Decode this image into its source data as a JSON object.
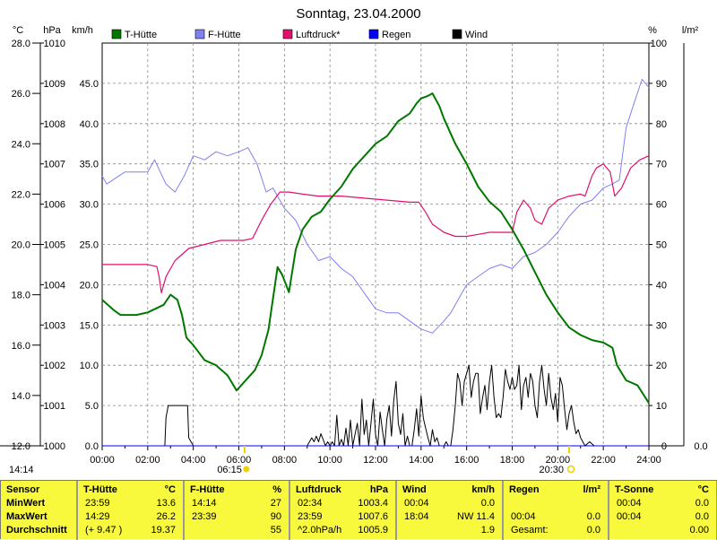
{
  "chart_data": {
    "type": "line",
    "title": "Sonntag, 23.04.2000",
    "x_ticks": [
      "00:00",
      "02:00",
      "04:00",
      "06:00",
      "08:00",
      "10:00",
      "12:00",
      "14:00",
      "16:00",
      "18:00",
      "20:00",
      "22:00",
      "24:00"
    ],
    "xlim": [
      0,
      24
    ],
    "axes": {
      "temp": {
        "unit": "°C",
        "ticks": [
          "12.0",
          "14.0",
          "16.0",
          "18.0",
          "20.0",
          "22.0",
          "24.0",
          "26.0",
          "28.0"
        ],
        "range": [
          12,
          28
        ]
      },
      "pressure": {
        "unit": "hPa",
        "ticks": [
          "1000",
          "1001",
          "1002",
          "1003",
          "1004",
          "1005",
          "1006",
          "1007",
          "1008",
          "1009",
          "1010"
        ],
        "range": [
          1000,
          1010
        ]
      },
      "wind": {
        "unit": "km/h",
        "ticks": [
          "0.0",
          "5.0",
          "10.0",
          "15.0",
          "20.0",
          "25.0",
          "30.0",
          "35.0",
          "40.0",
          "45.0"
        ],
        "range": [
          0,
          50
        ]
      },
      "humidity": {
        "unit": "%",
        "ticks": [
          "0",
          "10",
          "20",
          "30",
          "40",
          "50",
          "60",
          "70",
          "80",
          "90",
          "100"
        ],
        "range": [
          0,
          100
        ]
      },
      "rain": {
        "unit": "l/m²",
        "ticks": [
          "0.0"
        ],
        "range": [
          0,
          1
        ]
      }
    },
    "legend": [
      {
        "name": "T-Hütte",
        "color": "#007800"
      },
      {
        "name": "F-Hütte",
        "color": "#8080f0"
      },
      {
        "name": "Luftdruck*",
        "color": "#e0106e"
      },
      {
        "name": "Regen",
        "color": "#0000ff"
      },
      {
        "name": "Wind",
        "color": "#000000"
      }
    ],
    "series": [
      {
        "name": "T-Hütte",
        "axis": "temp",
        "color": "#007800",
        "x": [
          0,
          0.5,
          0.8,
          1.5,
          2.0,
          2.7,
          3.0,
          3.3,
          3.5,
          3.7,
          4.0,
          4.5,
          5.0,
          5.5,
          5.9,
          6.2,
          6.7,
          7.0,
          7.3,
          7.7,
          7.9,
          8.2,
          8.5,
          8.8,
          9.2,
          9.6,
          10.0,
          10.5,
          11.0,
          11.5,
          12.0,
          12.5,
          13.0,
          13.5,
          13.8,
          14.0,
          14.3,
          14.5,
          14.8,
          15.0,
          15.5,
          16.0,
          16.5,
          17.0,
          17.5,
          18.0,
          18.5,
          19.0,
          19.5,
          20.0,
          20.5,
          21.0,
          21.5,
          22.0,
          22.4,
          22.6,
          23.0,
          23.5,
          24.0
        ],
        "y": [
          17.8,
          17.4,
          17.2,
          17.2,
          17.3,
          17.6,
          18.0,
          17.8,
          17.2,
          16.3,
          16.0,
          15.4,
          15.2,
          14.8,
          14.2,
          14.5,
          15.0,
          15.6,
          16.6,
          19.1,
          18.8,
          18.1,
          19.8,
          20.6,
          21.1,
          21.3,
          21.8,
          22.3,
          23.0,
          23.5,
          24.0,
          24.3,
          24.9,
          25.2,
          25.6,
          25.8,
          25.9,
          26.0,
          25.5,
          25.0,
          24.0,
          23.2,
          22.3,
          21.7,
          21.3,
          20.6,
          19.8,
          18.9,
          18.0,
          17.3,
          16.7,
          16.4,
          16.2,
          16.1,
          15.9,
          15.2,
          14.6,
          14.4,
          13.7
        ]
      },
      {
        "name": "F-Hütte",
        "axis": "humidity",
        "color": "#8080f0",
        "x": [
          0,
          0.2,
          1.0,
          2.0,
          2.3,
          2.8,
          3.2,
          3.6,
          4.0,
          4.5,
          5.0,
          5.5,
          6.0,
          6.4,
          6.8,
          7.2,
          7.5,
          8.0,
          8.5,
          9.0,
          9.5,
          10.0,
          10.5,
          11.0,
          11.5,
          12.0,
          12.5,
          13.0,
          13.5,
          14.0,
          14.5,
          15.0,
          15.3,
          15.7,
          16.0,
          16.5,
          17.0,
          17.5,
          18.0,
          18.5,
          19.0,
          19.5,
          20.0,
          20.5,
          21.0,
          21.5,
          22.0,
          22.4,
          22.7,
          23.0,
          23.4,
          23.7,
          24.0
        ],
        "y": [
          67,
          65,
          68,
          68,
          71,
          65,
          63,
          67,
          72,
          71,
          73,
          72,
          73,
          74,
          70,
          63,
          64,
          59,
          56,
          50,
          46,
          47,
          44,
          42,
          38,
          34,
          33,
          33,
          31,
          29,
          28,
          31,
          33,
          37,
          40,
          42,
          44,
          45,
          44,
          47,
          48,
          50,
          53,
          57,
          60,
          61,
          64,
          65,
          66,
          79,
          86,
          91,
          89
        ]
      },
      {
        "name": "Luftdruck*",
        "axis": "pressure",
        "color": "#e0106e",
        "x": [
          0,
          1.0,
          2.0,
          2.4,
          2.5,
          2.6,
          2.8,
          3.2,
          3.8,
          4.5,
          5.2,
          5.8,
          6.2,
          6.6,
          7.0,
          7.4,
          7.8,
          8.2,
          8.8,
          9.5,
          10.5,
          11.5,
          12.5,
          13.5,
          13.9,
          14.2,
          14.5,
          15.0,
          15.5,
          16.0,
          16.5,
          17.0,
          17.5,
          18.0,
          18.2,
          18.5,
          18.8,
          19.0,
          19.3,
          19.6,
          20.0,
          20.5,
          21.0,
          21.2,
          21.5,
          21.7,
          22.0,
          22.3,
          22.5,
          22.8,
          23.2,
          23.6,
          24.0
        ],
        "y": [
          1004.5,
          1004.5,
          1004.5,
          1004.45,
          1004.2,
          1003.8,
          1004.2,
          1004.6,
          1004.9,
          1005.0,
          1005.1,
          1005.1,
          1005.1,
          1005.15,
          1005.6,
          1006.0,
          1006.3,
          1006.3,
          1006.25,
          1006.2,
          1006.2,
          1006.15,
          1006.1,
          1006.05,
          1006.05,
          1005.8,
          1005.5,
          1005.3,
          1005.2,
          1005.2,
          1005.25,
          1005.3,
          1005.3,
          1005.3,
          1005.8,
          1006.1,
          1005.9,
          1005.6,
          1005.5,
          1005.9,
          1006.1,
          1006.2,
          1006.25,
          1006.2,
          1006.7,
          1006.9,
          1007.0,
          1006.8,
          1006.2,
          1006.4,
          1006.9,
          1007.1,
          1007.2
        ]
      },
      {
        "name": "Wind",
        "axis": "wind",
        "color": "#000000",
        "x": [
          0,
          2.75,
          2.8,
          2.9,
          3.6,
          3.75,
          3.8,
          4.0,
          7.1,
          7.2,
          7.3,
          7.4,
          7.5,
          7.6,
          7.7,
          7.8,
          7.9,
          8.0,
          8.1,
          9.0,
          9.1,
          9.2,
          9.3,
          9.4,
          9.5,
          9.6,
          9.7,
          9.8,
          9.9,
          10.0,
          10.1,
          10.2,
          10.3,
          10.4,
          10.5,
          10.6,
          10.7,
          10.8,
          10.9,
          11.0,
          11.1,
          11.2,
          11.3,
          11.4,
          11.5,
          11.6,
          11.7,
          11.8,
          11.9,
          12.0,
          12.1,
          12.2,
          12.3,
          12.4,
          12.5,
          12.6,
          12.7,
          12.8,
          12.9,
          13.0,
          13.1,
          13.2,
          13.3,
          13.4,
          13.5,
          13.6,
          13.7,
          13.8,
          13.9,
          14.0,
          14.1,
          14.2,
          14.3,
          14.4,
          14.5,
          14.6,
          14.7,
          14.8,
          14.9,
          15.0,
          15.1,
          15.2,
          15.3,
          15.4,
          15.5,
          15.6,
          15.7,
          15.8,
          15.9,
          16.0,
          16.1,
          16.2,
          16.3,
          16.4,
          16.5,
          16.6,
          16.7,
          16.8,
          16.9,
          17.0,
          17.1,
          17.2,
          17.3,
          17.4,
          17.5,
          17.6,
          17.7,
          17.8,
          17.9,
          18.0,
          18.1,
          18.2,
          18.3,
          18.4,
          18.5,
          18.6,
          18.7,
          18.8,
          18.9,
          19.0,
          19.1,
          19.2,
          19.3,
          19.4,
          19.5,
          19.6,
          19.7,
          19.8,
          19.9,
          20.0,
          20.1,
          20.2,
          20.3,
          20.4,
          20.5,
          20.6,
          20.7,
          20.8,
          20.9,
          21.0,
          21.1,
          21.2,
          21.4,
          21.6,
          22.0,
          24.0
        ],
        "y": [
          0,
          0,
          3.5,
          5.0,
          5.0,
          5.0,
          1.0,
          0,
          0,
          0,
          0,
          0,
          0,
          0,
          0,
          0,
          0,
          0,
          0,
          0,
          0.5,
          1.0,
          0.5,
          1.2,
          0.5,
          1.5,
          0.8,
          0,
          0.5,
          0,
          0.5,
          0,
          3.8,
          0,
          0.8,
          0,
          2.2,
          0,
          3.2,
          0,
          1.4,
          2.8,
          0,
          5.8,
          1.4,
          3.2,
          0,
          2.8,
          5.8,
          1.4,
          0,
          4.2,
          2.0,
          0,
          3.4,
          5.0,
          1.2,
          5.6,
          8.0,
          2.8,
          1.4,
          4.0,
          0,
          1.2,
          0,
          0,
          2.0,
          4.6,
          1.2,
          6.2,
          3.4,
          2.2,
          1.0,
          0,
          2.0,
          0.5,
          1.0,
          0,
          0,
          0,
          0.5,
          0,
          0,
          2.0,
          5.0,
          9.0,
          8.0,
          5.0,
          8.0,
          9.0,
          10.0,
          6.0,
          8.0,
          9.0,
          9.0,
          4.0,
          6.0,
          7.5,
          4.5,
          8.0,
          10.0,
          6.0,
          3.5,
          4.0,
          3.5,
          6.0,
          9.5,
          8.0,
          7.0,
          8.5,
          7.0,
          7.5,
          10.0,
          4.5,
          7.5,
          8.5,
          6.0,
          9.0,
          8.0,
          5.0,
          3.5,
          8.0,
          10.0,
          7.0,
          5.0,
          9.0,
          6.0,
          4.5,
          6.5,
          3.0,
          8.5,
          7.5,
          4.5,
          2.0,
          4.0,
          5.0,
          3.0,
          1.5,
          2.0,
          1.0,
          0.5,
          0,
          0.5,
          0,
          0,
          0
        ]
      },
      {
        "name": "Regen",
        "axis": "rain",
        "color": "#0000ff",
        "x": [
          0,
          24
        ],
        "y": [
          0,
          0
        ]
      }
    ],
    "time_labels": {
      "top_left": "14:14",
      "sunrise": "06:15",
      "sunset": "20:30"
    },
    "legend_position": "top",
    "grid": true
  },
  "stats": {
    "row_labels": [
      "Sensor",
      "MinWert",
      "MaxWert",
      "Durchschnitt"
    ],
    "columns": [
      {
        "name": "T-Hütte",
        "unit": "°C",
        "rows": [
          [
            "23:59",
            "13.6"
          ],
          [
            "14:29",
            "26.2"
          ],
          [
            "(+ 9.47 )",
            "19.37"
          ]
        ]
      },
      {
        "name": "F-Hütte",
        "unit": "%",
        "rows": [
          [
            "14:14",
            "27"
          ],
          [
            "23:39",
            "90"
          ],
          [
            "",
            "55"
          ]
        ]
      },
      {
        "name": "Luftdruck",
        "unit": "hPa",
        "rows": [
          [
            "02:34",
            "1003.4"
          ],
          [
            "23:59",
            "1007.6"
          ],
          [
            "^2.0hPa/h",
            "1005.9"
          ]
        ]
      },
      {
        "name": "Wind",
        "unit": "km/h",
        "rows": [
          [
            "00:04",
            "0.0"
          ],
          [
            "18:04",
            "NW 11.4"
          ],
          [
            "",
            "1.9"
          ]
        ]
      },
      {
        "name": "Regen",
        "unit": "l/m²",
        "rows": [
          [
            "",
            ""
          ],
          [
            "00:04",
            "0.0"
          ],
          [
            "Gesamt:",
            "0.0"
          ]
        ]
      },
      {
        "name": "T-Sonne",
        "unit": "°C",
        "rows": [
          [
            "00:04",
            "0.0"
          ],
          [
            "00:04",
            "0.0"
          ],
          [
            "",
            "0.00"
          ]
        ]
      }
    ]
  }
}
